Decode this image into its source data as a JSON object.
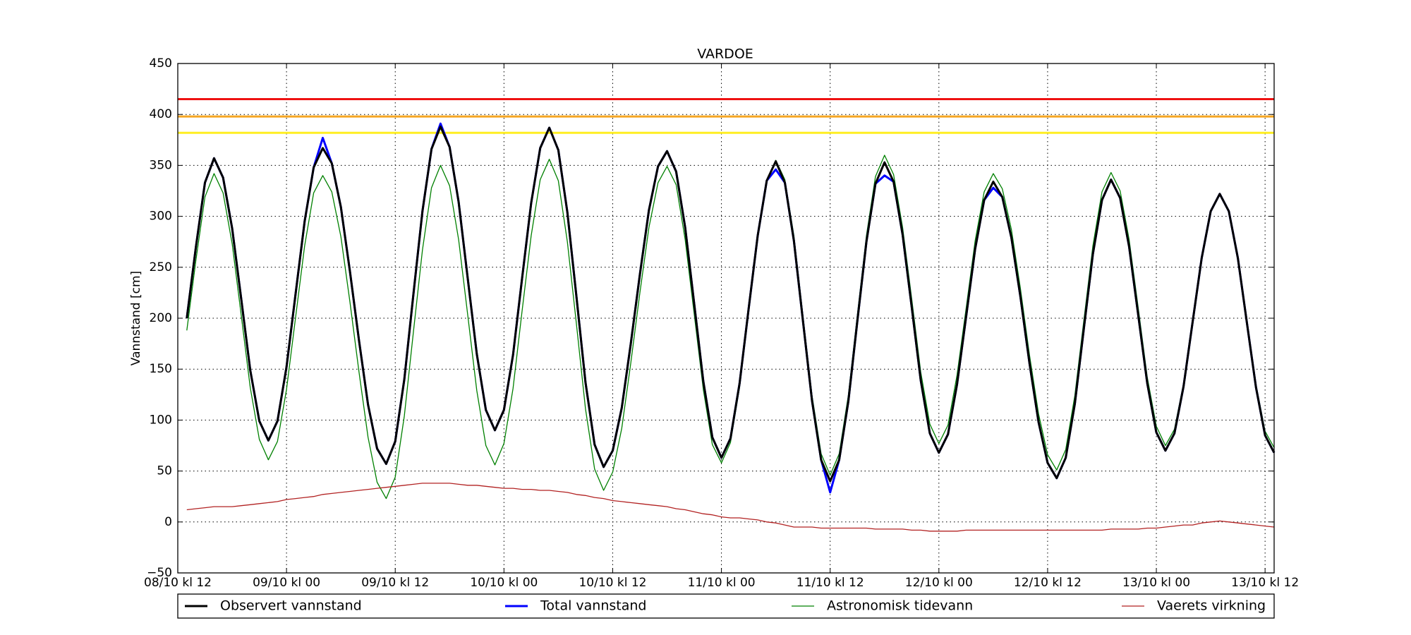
{
  "chart_data": {
    "type": "line",
    "title": "VARDOE",
    "y_label": "Vannstand [cm]",
    "x": [
      1,
      2,
      3,
      4,
      5,
      6,
      7,
      8,
      9,
      10,
      11,
      12,
      13,
      14,
      15,
      16,
      17,
      18,
      19,
      20,
      21,
      22,
      23,
      24,
      25,
      26,
      27,
      28,
      29,
      30,
      31,
      32,
      33,
      34,
      35,
      36,
      37,
      38,
      39,
      40,
      41,
      42,
      43,
      44,
      45,
      46,
      47,
      48,
      49,
      50,
      51,
      52,
      53,
      54,
      55,
      56,
      57,
      58,
      59,
      60,
      61,
      62,
      63,
      64,
      65,
      66,
      67,
      68,
      69,
      70,
      71,
      72,
      73,
      74,
      75,
      76,
      77,
      78,
      79,
      80,
      81,
      82,
      83,
      84,
      85,
      86,
      87,
      88,
      89,
      90,
      91,
      92,
      93,
      94,
      95,
      96,
      97,
      98,
      99,
      100,
      101,
      102,
      103,
      104,
      105,
      106,
      107,
      108,
      109,
      110,
      111,
      112,
      113,
      114,
      115,
      116,
      117,
      118,
      119,
      120,
      121
    ],
    "xlim": [
      0,
      121
    ],
    "xticks": [
      {
        "value": 0,
        "label": "08/10 kl 12"
      },
      {
        "value": 12,
        "label": "09/10 kl 00"
      },
      {
        "value": 24,
        "label": "09/10 kl 12"
      },
      {
        "value": 36,
        "label": "10/10 kl 00"
      },
      {
        "value": 48,
        "label": "10/10 kl 12"
      },
      {
        "value": 60,
        "label": "11/10 kl 00"
      },
      {
        "value": 72,
        "label": "11/10 kl 12"
      },
      {
        "value": 84,
        "label": "12/10 kl 00"
      },
      {
        "value": 96,
        "label": "12/10 kl 12"
      },
      {
        "value": 108,
        "label": "13/10 kl 00"
      },
      {
        "value": 120,
        "label": "13/10 kl 12"
      }
    ],
    "ylim": [
      -50,
      450
    ],
    "yticks": [
      {
        "value": -50,
        "label": "−50"
      },
      0,
      50,
      100,
      150,
      200,
      250,
      300,
      350,
      400,
      450
    ],
    "grid": true,
    "hlines": [
      {
        "value": 415,
        "color": "#ee1111"
      },
      {
        "value": 398,
        "color": "#f5a623"
      },
      {
        "value": 382,
        "color": "#ffee22"
      }
    ],
    "legend": "bottom",
    "series": [
      {
        "name": "Observert vannstand",
        "color": "#000000",
        "width": 3,
        "values": [
          200,
          270,
          333,
          357,
          338,
          288,
          219,
          149,
          99,
          80,
          99,
          152,
          224,
          295,
          348,
          367,
          352,
          309,
          246,
          178,
          115,
          72,
          57,
          79,
          140,
          223,
          305,
          366,
          388,
          368,
          314,
          239,
          165,
          110,
          90,
          110,
          164,
          239,
          313,
          367,
          387,
          365,
          304,
          221,
          137,
          76,
          54,
          70,
          112,
          175,
          243,
          306,
          349,
          364,
          344,
          289,
          214,
          138,
          83,
          63,
          82,
          136,
          209,
          281,
          335,
          354,
          333,
          276,
          197,
          119,
          61,
          40,
          61,
          118,
          197,
          275,
          332,
          353,
          334,
          282,
          211,
          139,
          87,
          68,
          86,
          135,
          201,
          268,
          316,
          334,
          319,
          279,
          221,
          156,
          98,
          58,
          43,
          63,
          116,
          190,
          263,
          316,
          336,
          318,
          270,
          203,
          136,
          88,
          70,
          87,
          133,
          196,
          259,
          305,
          322,
          305,
          259,
          195,
          132,
          85,
          68
        ]
      },
      {
        "name": "Total vannstand",
        "color": "#0000ff",
        "width": 3,
        "values": [
          200,
          270,
          333,
          357,
          338,
          288,
          219,
          149,
          99,
          80,
          99,
          152,
          224,
          295,
          348,
          377,
          352,
          309,
          246,
          178,
          115,
          72,
          57,
          79,
          140,
          223,
          305,
          366,
          391,
          368,
          314,
          239,
          165,
          110,
          90,
          110,
          164,
          239,
          313,
          367,
          387,
          365,
          304,
          221,
          137,
          76,
          54,
          70,
          112,
          175,
          243,
          306,
          349,
          364,
          344,
          289,
          214,
          138,
          83,
          63,
          82,
          136,
          209,
          281,
          335,
          346,
          333,
          276,
          197,
          119,
          61,
          29,
          61,
          118,
          197,
          275,
          332,
          340,
          334,
          282,
          211,
          139,
          87,
          68,
          86,
          135,
          201,
          268,
          316,
          328,
          319,
          279,
          221,
          156,
          98,
          58,
          43,
          63,
          116,
          190,
          263,
          316,
          336,
          318,
          270,
          203,
          136,
          88,
          70,
          87,
          133,
          196,
          259,
          305,
          322,
          305,
          259,
          195,
          132,
          85,
          68
        ]
      },
      {
        "name": "Astronomisk tidevann",
        "color": "#008000",
        "width": 1.3,
        "values": [
          188,
          257,
          319,
          342,
          323,
          273,
          203,
          132,
          81,
          61,
          79,
          130,
          201,
          271,
          323,
          340,
          324,
          280,
          216,
          147,
          83,
          39,
          23,
          44,
          104,
          186,
          267,
          328,
          350,
          330,
          277,
          203,
          129,
          75,
          56,
          77,
          131,
          207,
          281,
          336,
          356,
          335,
          275,
          194,
          111,
          52,
          31,
          49,
          92,
          156,
          225,
          289,
          333,
          349,
          331,
          277,
          204,
          130,
          76,
          58,
          78,
          132,
          206,
          279,
          335,
          355,
          336,
          281,
          202,
          124,
          67,
          46,
          67,
          124,
          203,
          281,
          339,
          360,
          341,
          289,
          219,
          147,
          96,
          77,
          95,
          144,
          209,
          276,
          324,
          342,
          327,
          287,
          229,
          164,
          106,
          66,
          51,
          71,
          124,
          198,
          271,
          324,
          343,
          325,
          277,
          210,
          142,
          94,
          75,
          91,
          136,
          199,
          260,
          305,
          321,
          305,
          260,
          197,
          135,
          89,
          73
        ]
      },
      {
        "name": "Vaerets virkning",
        "color": "#b22222",
        "width": 1.3,
        "values": [
          12,
          13,
          14,
          15,
          15,
          15,
          16,
          17,
          18,
          19,
          20,
          22,
          23,
          24,
          25,
          27,
          28,
          29,
          30,
          31,
          32,
          33,
          34,
          35,
          36,
          37,
          38,
          38,
          38,
          38,
          37,
          36,
          36,
          35,
          34,
          33,
          33,
          32,
          32,
          31,
          31,
          30,
          29,
          27,
          26,
          24,
          23,
          21,
          20,
          19,
          18,
          17,
          16,
          15,
          13,
          12,
          10,
          8,
          7,
          5,
          4,
          4,
          3,
          2,
          0,
          -1,
          -3,
          -5,
          -5,
          -5,
          -6,
          -6,
          -6,
          -6,
          -6,
          -6,
          -7,
          -7,
          -7,
          -7,
          -8,
          -8,
          -9,
          -9,
          -9,
          -9,
          -8,
          -8,
          -8,
          -8,
          -8,
          -8,
          -8,
          -8,
          -8,
          -8,
          -8,
          -8,
          -8,
          -8,
          -8,
          -8,
          -7,
          -7,
          -7,
          -7,
          -6,
          -6,
          -5,
          -4,
          -3,
          -3,
          -1,
          0,
          1,
          0,
          -1,
          -2,
          -3,
          -4,
          -5
        ]
      }
    ]
  }
}
